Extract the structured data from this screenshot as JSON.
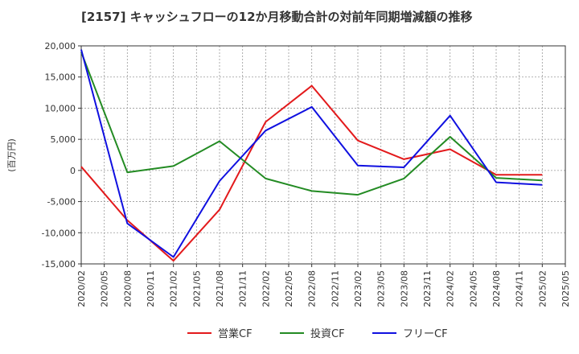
{
  "chart_data": {
    "type": "line",
    "title": "[2157]  キャッシュフローの12か月移動合計の対前年同期増減額の推移",
    "ylabel": "(百万円)",
    "xlabel": "",
    "x_ticks": [
      "2020/02",
      "2020/05",
      "2020/08",
      "2020/11",
      "2021/02",
      "2021/05",
      "2021/08",
      "2021/11",
      "2022/02",
      "2022/05",
      "2022/08",
      "2022/11",
      "2023/02",
      "2023/05",
      "2023/08",
      "2023/11",
      "2024/02",
      "2024/05",
      "2024/08",
      "2024/11",
      "2025/02",
      "2025/05"
    ],
    "y_ticks": [
      20000,
      15000,
      10000,
      5000,
      0,
      -5000,
      -10000,
      -15000
    ],
    "y_tick_labels": [
      "20,000",
      "15,000",
      "10,000",
      "5,000",
      "0",
      "-5,000",
      "-10,000",
      "-15,000"
    ],
    "ylim": [
      -15000,
      20000
    ],
    "grid": true,
    "legend_position": "bottom",
    "x": [
      "2020/02",
      "2020/08",
      "2021/02",
      "2021/08",
      "2022/02",
      "2022/08",
      "2023/02",
      "2023/08",
      "2024/02",
      "2024/08",
      "2025/02"
    ],
    "series": [
      {
        "name": "営業CF",
        "color": "#e31a1c",
        "values": [
          600,
          -8000,
          -14500,
          -6300,
          7800,
          13600,
          4800,
          1800,
          3400,
          -700,
          -700
        ]
      },
      {
        "name": "投資CF",
        "color": "#238b23",
        "values": [
          19000,
          -300,
          700,
          4700,
          -1300,
          -3300,
          -3900,
          -1300,
          5400,
          -1200,
          -1600
        ]
      },
      {
        "name": "フリーCF",
        "color": "#1010e0",
        "values": [
          19400,
          -8500,
          -13900,
          -1700,
          6400,
          10200,
          800,
          500,
          8800,
          -1900,
          -2300
        ]
      }
    ]
  }
}
